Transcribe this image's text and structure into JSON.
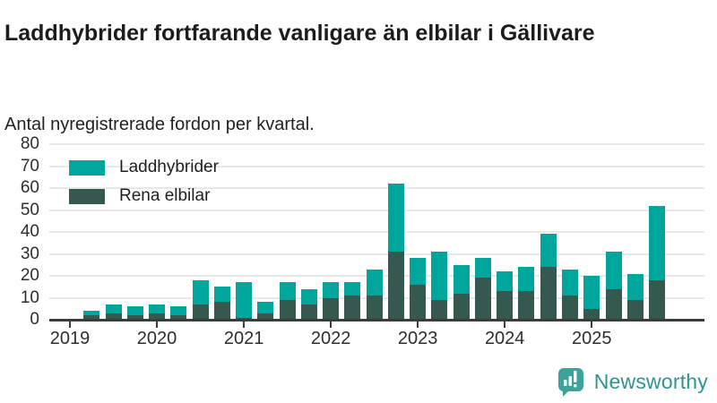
{
  "header": {
    "title": "Laddhybrider fortfarande vanligare än elbilar i Gällivare",
    "subtitle": "Antal nyregistrerade fordon per kvartal."
  },
  "legend": [
    {
      "label": "Laddhybrider",
      "color": "#00a59c"
    },
    {
      "label": "Rena elbilar",
      "color": "#35594f"
    }
  ],
  "branding": {
    "name": "Newsworthy",
    "logo_icon": "bar-chart-speech-bubble-icon",
    "color": "#2f948f",
    "mark_color": "#3ca39a"
  },
  "chart_data": {
    "type": "bar",
    "stacked": true,
    "title": "Laddhybrider fortfarande vanligare än elbilar i Gällivare",
    "subtitle": "Antal nyregistrerade fordon per kvartal.",
    "xlabel": "",
    "ylabel": "",
    "ylim": [
      0,
      80
    ],
    "yticks": [
      0,
      10,
      20,
      30,
      40,
      50,
      60,
      70,
      80
    ],
    "grid": "horizontal",
    "legend_position": "top-left-inside",
    "x": [
      "2019 Q1",
      "2019 Q2",
      "2019 Q3",
      "2019 Q4",
      "2020 Q1",
      "2020 Q2",
      "2020 Q3",
      "2020 Q4",
      "2021 Q1",
      "2021 Q2",
      "2021 Q3",
      "2021 Q4",
      "2022 Q1",
      "2022 Q2",
      "2022 Q3",
      "2022 Q4",
      "2023 Q1",
      "2023 Q2",
      "2023 Q3",
      "2023 Q4",
      "2024 Q1",
      "2024 Q2",
      "2024 Q3",
      "2024 Q4",
      "2025 Q1",
      "2025 Q2",
      "2025 Q3",
      "2025 Q4"
    ],
    "xtick_labels": [
      "2019",
      "2020",
      "2021",
      "2022",
      "2023",
      "2024",
      "2025"
    ],
    "series": [
      {
        "name": "Rena elbilar",
        "color": "#35594f",
        "stack_position": "bottom",
        "values": [
          0,
          2,
          3,
          2,
          3,
          2,
          7,
          8,
          1,
          3,
          9,
          7,
          10,
          11,
          11,
          31,
          16,
          9,
          12,
          19,
          13,
          13,
          24,
          11,
          5,
          14,
          9,
          18
        ]
      },
      {
        "name": "Laddhybrider",
        "color": "#00a59c",
        "stack_position": "top",
        "values": [
          0,
          2,
          4,
          4,
          4,
          4,
          11,
          7,
          16,
          5,
          8,
          7,
          7,
          6,
          12,
          31,
          12,
          22,
          13,
          9,
          9,
          11,
          15,
          12,
          15,
          17,
          12,
          34
        ]
      }
    ],
    "stack_totals": [
      0,
      4,
      7,
      6,
      7,
      6,
      18,
      15,
      17,
      8,
      17,
      14,
      17,
      17,
      23,
      62,
      28,
      31,
      25,
      28,
      22,
      24,
      39,
      23,
      20,
      31,
      21,
      52
    ]
  }
}
